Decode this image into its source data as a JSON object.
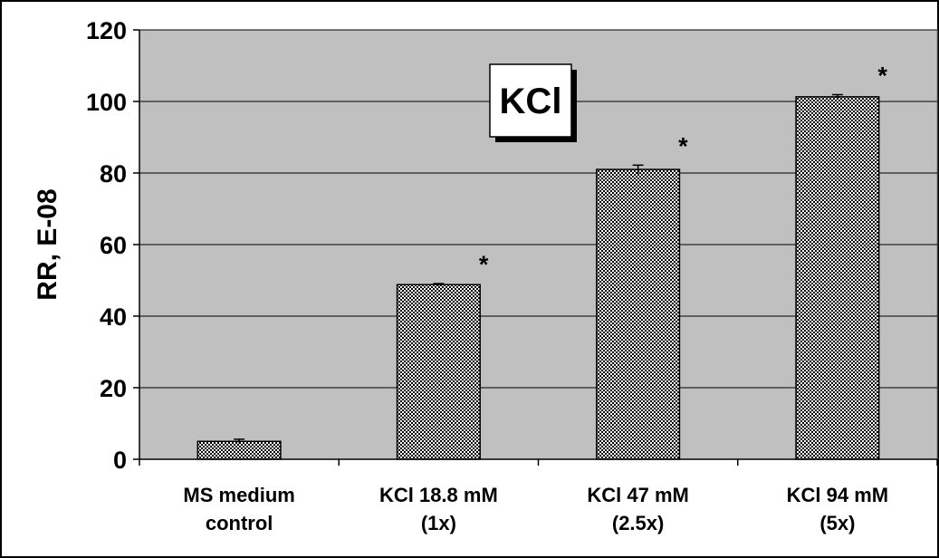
{
  "chart_data": {
    "type": "bar",
    "title": "KCl",
    "xlabel": "",
    "ylabel": "RR, E-08",
    "ylim": [
      0,
      120
    ],
    "yticks": [
      0,
      20,
      40,
      60,
      80,
      100,
      120
    ],
    "grid": true,
    "legend": "none",
    "categories": [
      [
        "MS medium",
        "control"
      ],
      [
        "KCl 18.8 mM",
        "(1x)"
      ],
      [
        "KCl 47 mM",
        "(2.5x)"
      ],
      [
        "KCl 94 mM",
        "(5x)"
      ]
    ],
    "values": [
      5,
      48.8,
      81,
      101.3
    ],
    "errors": [
      0.6,
      0.3,
      1.2,
      0.6
    ],
    "annotations": [
      "",
      "*",
      "*",
      "*"
    ],
    "colors": {
      "plot_bg": "#c0c0c0",
      "bar_fill": "#ffffff",
      "bar_dots": "#000000",
      "grid": "#000000"
    }
  }
}
